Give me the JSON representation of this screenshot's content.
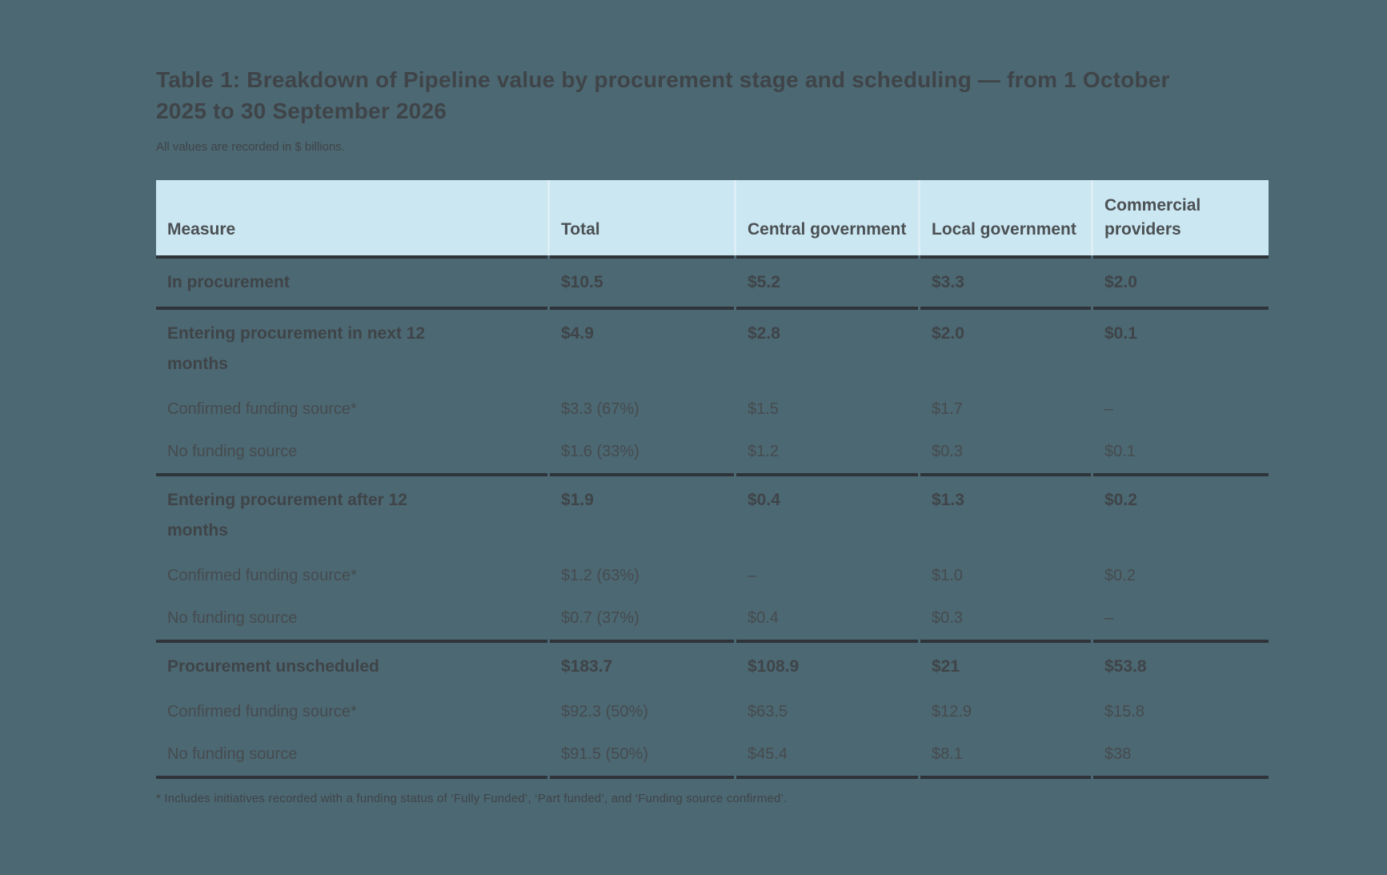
{
  "title": "Table 1: Breakdown of Pipeline value by procurement stage and scheduling — from 1 October 2025 to 30 September 2026",
  "subtitle": "All values are recorded in $ billions.",
  "footnote": "* Includes initiatives recorded with a funding status of ‘Fully Funded’, ‘Part funded’, and ‘Funding source confirmed’.",
  "units": "$ billions",
  "colors": {
    "page-bg": "#4c6872",
    "header-bg": "#cbe7f1",
    "header-gap": "#ddeef6",
    "rule": "#2e3439",
    "text-strong": "#3f4448",
    "text-body": "#464b4f",
    "header-text": "#4b5054"
  },
  "table": {
    "header": {
      "measure": "Measure",
      "total": "Total",
      "central": "Central government",
      "local": "Local government",
      "commercial": "Commercial providers"
    },
    "rows": [
      {
        "style": "group",
        "measure": "In procurement",
        "total": "$10.5",
        "central": "$5.2",
        "local": "$3.3",
        "commercial": "$2.0"
      },
      {
        "style": "group",
        "measure": "Entering procurement in next 12 months",
        "total": "$4.9",
        "central": "$2.8",
        "local": "$2.0",
        "commercial": "$0.1"
      },
      {
        "style": "sub",
        "measure": "Confirmed funding source*",
        "total": "$3.3 (67%)",
        "central": "$1.5",
        "local": "$1.7",
        "commercial": "–"
      },
      {
        "style": "sub",
        "measure": "No funding source",
        "total": "$1.6 (33%)",
        "central": "$1.2",
        "local": "$0.3",
        "commercial": "$0.1"
      },
      {
        "style": "group",
        "measure": "Entering procurement after 12 months",
        "total": "$1.9",
        "central": "$0.4",
        "local": "$1.3",
        "commercial": "$0.2"
      },
      {
        "style": "sub",
        "measure": "Confirmed funding source*",
        "total": "$1.2 (63%)",
        "central": "–",
        "local": "$1.0",
        "commercial": "$0.2"
      },
      {
        "style": "sub",
        "measure": "No funding source",
        "total": "$0.7 (37%)",
        "central": "$0.4",
        "local": "$0.3",
        "commercial": "–"
      },
      {
        "style": "group",
        "measure": "Procurement unscheduled",
        "total": "$183.7",
        "central": "$108.9",
        "local": "$21",
        "commercial": "$53.8"
      },
      {
        "style": "sub",
        "measure": "Confirmed funding source*",
        "total": "$92.3 (50%)",
        "central": "$63.5",
        "local": "$12.9",
        "commercial": "$15.8"
      },
      {
        "style": "sub",
        "measure": "No funding source",
        "total": "$91.5 (50%)",
        "central": "$45.4",
        "local": "$8.1",
        "commercial": "$38"
      }
    ]
  }
}
